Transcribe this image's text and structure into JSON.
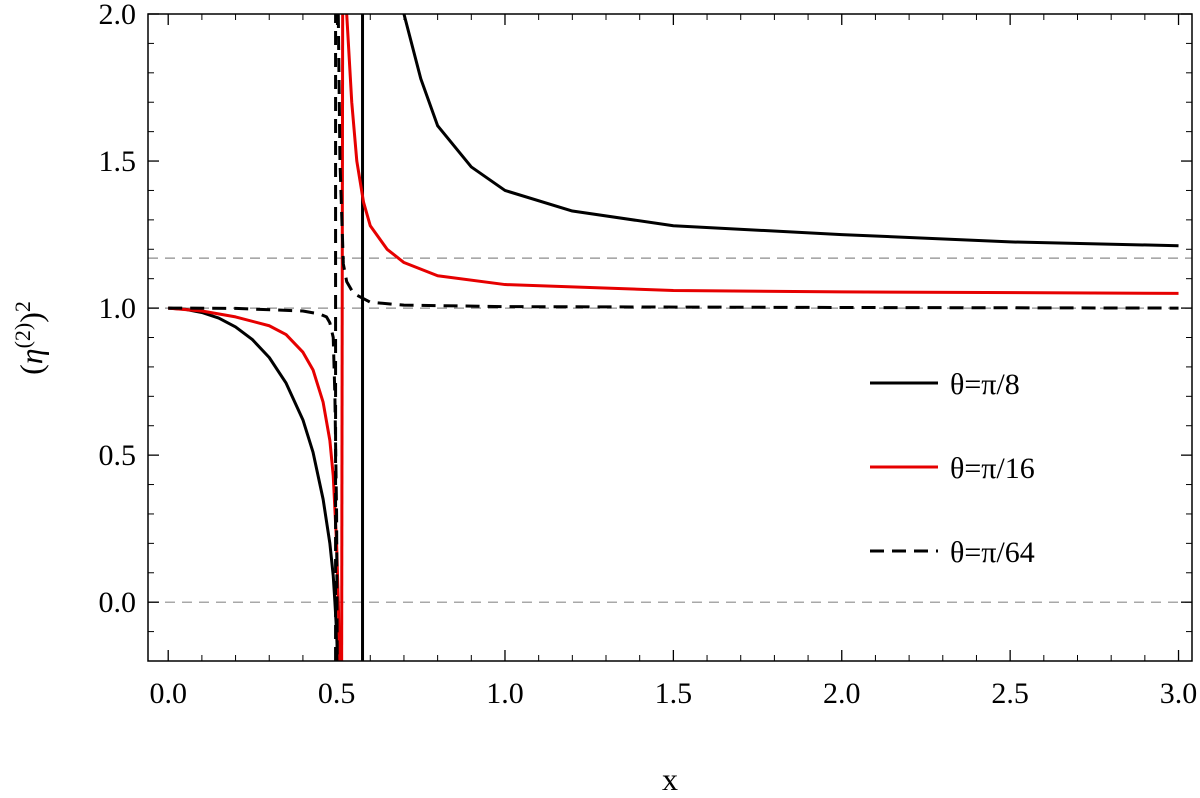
{
  "chart_data": {
    "type": "line",
    "xlabel": "x",
    "ylabel": {
      "open": "(",
      "symbol": "η",
      "superscript": "(2)",
      "close": ")",
      "power": "2"
    },
    "xlim": [
      -0.06,
      3.04
    ],
    "ylim": [
      -0.2,
      2.0
    ],
    "x_ticks": [
      {
        "value": 0.0,
        "label": "0.0"
      },
      {
        "value": 0.5,
        "label": "0.5"
      },
      {
        "value": 1.0,
        "label": "1.0"
      },
      {
        "value": 1.5,
        "label": "1.5"
      },
      {
        "value": 2.0,
        "label": "2.0"
      },
      {
        "value": 2.5,
        "label": "2.5"
      },
      {
        "value": 3.0,
        "label": "3.0"
      }
    ],
    "y_ticks": [
      {
        "value": 0.0,
        "label": "0.0"
      },
      {
        "value": 0.5,
        "label": "0.5"
      },
      {
        "value": 1.0,
        "label": "1.0"
      },
      {
        "value": 1.5,
        "label": "1.5"
      },
      {
        "value": 2.0,
        "label": "2.0"
      }
    ],
    "x_minor_step": 0.1,
    "y_minor_step": 0.1,
    "reference_lines": [
      {
        "axis": "y",
        "value": 0.0,
        "style": "dashed",
        "color": "#8c8c8c"
      },
      {
        "axis": "y",
        "value": 1.0,
        "style": "dashed",
        "color": "#8c8c8c"
      },
      {
        "axis": "y",
        "value": 1.17,
        "style": "dashed",
        "color": "#8c8c8c"
      }
    ],
    "series": [
      {
        "name": "θ=π/8",
        "color": "#000000",
        "style": "solid",
        "segments": [
          [
            [
              0.0,
              1.0
            ],
            [
              0.05,
              0.996
            ],
            [
              0.1,
              0.985
            ],
            [
              0.15,
              0.966
            ],
            [
              0.2,
              0.936
            ],
            [
              0.25,
              0.893
            ],
            [
              0.3,
              0.832
            ],
            [
              0.35,
              0.745
            ],
            [
              0.4,
              0.62
            ],
            [
              0.43,
              0.51
            ],
            [
              0.46,
              0.35
            ],
            [
              0.48,
              0.2
            ],
            [
              0.49,
              0.09
            ],
            [
              0.495,
              0.0
            ],
            [
              0.5,
              -0.1
            ],
            [
              0.503,
              -0.2
            ]
          ],
          [
            [
              0.577,
              -0.2
            ],
            [
              0.577,
              2.0
            ]
          ],
          [
            [
              0.7,
              2.0
            ],
            [
              0.75,
              1.78
            ],
            [
              0.8,
              1.62
            ],
            [
              0.9,
              1.48
            ],
            [
              1.0,
              1.4
            ],
            [
              1.2,
              1.33
            ],
            [
              1.5,
              1.28
            ],
            [
              2.0,
              1.25
            ],
            [
              2.5,
              1.225
            ],
            [
              3.0,
              1.212
            ]
          ]
        ]
      },
      {
        "name": "θ=π/16",
        "color": "#e60000",
        "style": "solid",
        "segments": [
          [
            [
              0.0,
              1.0
            ],
            [
              0.1,
              0.99
            ],
            [
              0.2,
              0.97
            ],
            [
              0.3,
              0.94
            ],
            [
              0.35,
              0.91
            ],
            [
              0.4,
              0.85
            ],
            [
              0.43,
              0.79
            ],
            [
              0.46,
              0.68
            ],
            [
              0.48,
              0.55
            ],
            [
              0.49,
              0.43
            ],
            [
              0.5,
              0.2
            ],
            [
              0.505,
              0.0
            ],
            [
              0.51,
              -0.2
            ]
          ],
          [
            [
              0.515,
              -0.2
            ],
            [
              0.518,
              2.0
            ]
          ],
          [
            [
              0.53,
              2.0
            ],
            [
              0.545,
              1.7
            ],
            [
              0.56,
              1.5
            ],
            [
              0.58,
              1.36
            ],
            [
              0.6,
              1.28
            ],
            [
              0.65,
              1.2
            ],
            [
              0.7,
              1.155
            ],
            [
              0.8,
              1.11
            ],
            [
              1.0,
              1.08
            ],
            [
              1.5,
              1.06
            ],
            [
              2.0,
              1.055
            ],
            [
              3.0,
              1.05
            ]
          ]
        ]
      },
      {
        "name": "θ=π/64",
        "color": "#000000",
        "style": "dashed",
        "segments": [
          [
            [
              0.0,
              1.0
            ],
            [
              0.2,
              0.999
            ],
            [
              0.4,
              0.99
            ],
            [
              0.45,
              0.98
            ],
            [
              0.47,
              0.97
            ],
            [
              0.48,
              0.95
            ],
            [
              0.49,
              0.9
            ],
            [
              0.495,
              0.7
            ],
            [
              0.5,
              0.3
            ],
            [
              0.502,
              -0.2
            ]
          ],
          [
            [
              0.497,
              -0.2
            ],
            [
              0.497,
              2.0
            ]
          ],
          [
            [
              0.505,
              2.0
            ],
            [
              0.51,
              1.5
            ],
            [
              0.52,
              1.15
            ],
            [
              0.53,
              1.09
            ],
            [
              0.55,
              1.05
            ],
            [
              0.6,
              1.02
            ],
            [
              0.7,
              1.01
            ],
            [
              1.0,
              1.005
            ],
            [
              2.0,
              1.002
            ],
            [
              3.0,
              1.0
            ]
          ]
        ]
      }
    ],
    "legend": {
      "placement": "right",
      "entries": [
        {
          "label": "θ=π/8",
          "color": "#000000",
          "style": "solid"
        },
        {
          "label": "θ=π/16",
          "color": "#e60000",
          "style": "solid"
        },
        {
          "label": "θ=π/64",
          "color": "#000000",
          "style": "dashed"
        }
      ]
    },
    "grid": false
  }
}
